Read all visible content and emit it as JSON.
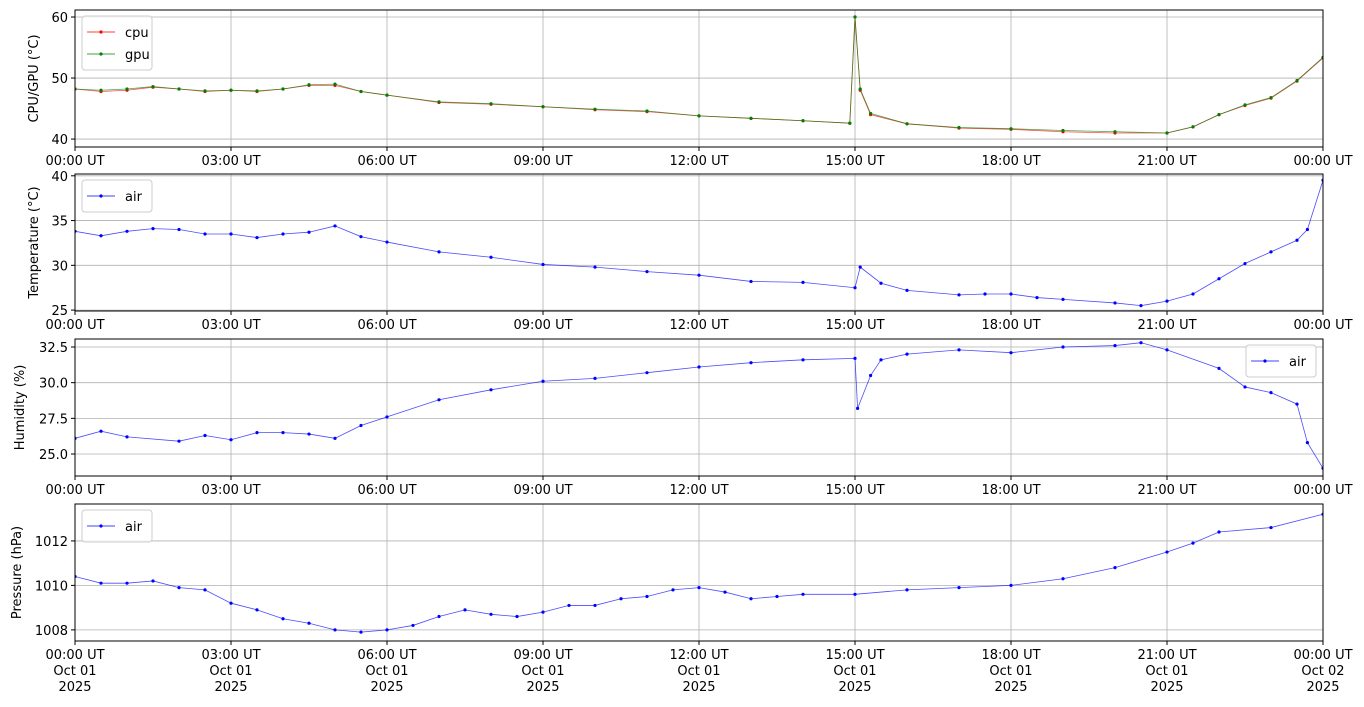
{
  "chart_data": [
    {
      "type": "line",
      "ylabel": "CPU/GPU (°C)",
      "ylim": [
        38.7,
        61.15
      ],
      "yticks": [
        40,
        50,
        60
      ],
      "xlim": [
        "00:00",
        "24:00"
      ],
      "xtick_labels": [
        "00:00 UT",
        "03:00 UT",
        "06:00 UT",
        "09:00 UT",
        "12:00 UT",
        "15:00 UT",
        "18:00 UT",
        "21:00 UT",
        "00:00 UT"
      ],
      "grid": true,
      "legend": "top-left",
      "x": [
        "00:00",
        "00:30",
        "01:00",
        "01:30",
        "02:00",
        "02:30",
        "03:00",
        "03:30",
        "04:00",
        "04:30",
        "05:00",
        "05:30",
        "06:00",
        "07:00",
        "08:00",
        "09:00",
        "10:00",
        "11:00",
        "12:00",
        "13:00",
        "14:00",
        "14:54",
        "15:00",
        "15:06",
        "15:18",
        "16:00",
        "17:00",
        "18:00",
        "19:00",
        "20:00",
        "21:00",
        "21:30",
        "22:00",
        "22:30",
        "23:00",
        "23:30",
        "24:00"
      ],
      "series": [
        {
          "name": "cpu",
          "color": "#ff0000",
          "values": [
            48.2,
            47.8,
            48.0,
            48.5,
            48.2,
            47.8,
            48.0,
            47.8,
            48.2,
            48.8,
            48.8,
            47.8,
            47.2,
            46.0,
            45.7,
            45.3,
            44.8,
            44.5,
            43.8,
            43.4,
            43.0,
            42.6,
            60.0,
            48.0,
            44.0,
            42.5,
            41.8,
            41.6,
            41.2,
            41.0,
            41.0,
            42.0,
            44.0,
            45.5,
            46.7,
            49.5,
            53.3
          ]
        },
        {
          "name": "gpu",
          "color": "#008000",
          "values": [
            48.2,
            48.0,
            48.2,
            48.6,
            48.2,
            47.9,
            48.0,
            47.9,
            48.2,
            48.9,
            49.0,
            47.8,
            47.2,
            46.1,
            45.8,
            45.3,
            44.9,
            44.6,
            43.8,
            43.4,
            43.0,
            42.6,
            60.0,
            48.2,
            44.2,
            42.5,
            41.9,
            41.7,
            41.4,
            41.2,
            41.0,
            42.0,
            44.0,
            45.6,
            46.8,
            49.6,
            53.4
          ]
        }
      ]
    },
    {
      "type": "line",
      "ylabel": "Temperature (°C)",
      "ylim": [
        24.9,
        40.2
      ],
      "yticks": [
        25,
        30,
        35,
        40
      ],
      "xlim": [
        "00:00",
        "24:00"
      ],
      "xtick_labels": [
        "00:00 UT",
        "03:00 UT",
        "06:00 UT",
        "09:00 UT",
        "12:00 UT",
        "15:00 UT",
        "18:00 UT",
        "21:00 UT",
        "00:00 UT"
      ],
      "grid": true,
      "legend": "top-left",
      "x": [
        "00:00",
        "00:30",
        "01:00",
        "01:30",
        "02:00",
        "02:30",
        "03:00",
        "03:30",
        "04:00",
        "04:30",
        "05:00",
        "05:30",
        "06:00",
        "07:00",
        "08:00",
        "09:00",
        "10:00",
        "11:00",
        "12:00",
        "13:00",
        "14:00",
        "15:00",
        "15:06",
        "15:30",
        "16:00",
        "17:00",
        "17:30",
        "18:00",
        "18:30",
        "19:00",
        "20:00",
        "20:30",
        "21:00",
        "21:30",
        "22:00",
        "22:30",
        "23:00",
        "23:30",
        "23:42",
        "24:00"
      ],
      "series": [
        {
          "name": "air",
          "color": "#0000ff",
          "values": [
            33.8,
            33.3,
            33.8,
            34.1,
            34.0,
            33.5,
            33.5,
            33.1,
            33.5,
            33.7,
            34.4,
            33.2,
            32.6,
            31.5,
            30.9,
            30.1,
            29.8,
            29.3,
            28.9,
            28.2,
            28.1,
            27.5,
            29.8,
            28.0,
            27.2,
            26.7,
            26.8,
            26.8,
            26.4,
            26.2,
            25.8,
            25.5,
            26.0,
            26.8,
            28.5,
            30.2,
            31.5,
            32.8,
            34.0,
            39.5
          ]
        }
      ]
    },
    {
      "type": "line",
      "ylabel": "Humidity (%)",
      "ylim": [
        23.46,
        33.06
      ],
      "yticks": [
        25.0,
        27.5,
        30.0,
        32.5
      ],
      "ytick_labels": [
        "25.0",
        "27.5",
        "30.0",
        "32.5"
      ],
      "xlim": [
        "00:00",
        "24:00"
      ],
      "xtick_labels": [
        "00:00 UT",
        "03:00 UT",
        "06:00 UT",
        "09:00 UT",
        "12:00 UT",
        "15:00 UT",
        "18:00 UT",
        "21:00 UT",
        "00:00 UT"
      ],
      "grid": true,
      "legend": "top-right",
      "x": [
        "00:00",
        "00:30",
        "01:00",
        "02:00",
        "02:30",
        "03:00",
        "03:30",
        "04:00",
        "04:30",
        "05:00",
        "05:30",
        "06:00",
        "07:00",
        "08:00",
        "09:00",
        "10:00",
        "11:00",
        "12:00",
        "13:00",
        "14:00",
        "15:00",
        "15:03",
        "15:18",
        "15:30",
        "16:00",
        "17:00",
        "18:00",
        "19:00",
        "20:00",
        "20:30",
        "21:00",
        "22:00",
        "22:30",
        "23:00",
        "23:30",
        "23:42",
        "24:00"
      ],
      "series": [
        {
          "name": "air",
          "color": "#0000ff",
          "values": [
            26.1,
            26.6,
            26.2,
            25.9,
            26.3,
            26.0,
            26.5,
            26.5,
            26.4,
            26.1,
            27.0,
            27.6,
            28.8,
            29.5,
            30.1,
            30.3,
            30.7,
            31.1,
            31.4,
            31.6,
            31.7,
            28.2,
            30.5,
            31.6,
            32.0,
            32.3,
            32.1,
            32.5,
            32.6,
            32.8,
            32.3,
            31.0,
            29.7,
            29.3,
            28.5,
            25.8,
            24.0
          ]
        }
      ]
    },
    {
      "type": "line",
      "ylabel": "Pressure (hPa)",
      "ylim": [
        1007.5,
        1013.66
      ],
      "yticks": [
        1008,
        1010,
        1012
      ],
      "xlim": [
        "00:00",
        "24:00"
      ],
      "xtick_labels": [
        "00:00 UT\nOct 01\n2025",
        "03:00 UT\nOct 01\n2025",
        "06:00 UT\nOct 01\n2025",
        "09:00 UT\nOct 01\n2025",
        "12:00 UT\nOct 01\n2025",
        "15:00 UT\nOct 01\n2025",
        "18:00 UT\nOct 01\n2025",
        "21:00 UT\nOct 01\n2025",
        "00:00 UT\nOct 02\n2025"
      ],
      "grid": true,
      "legend": "top-left",
      "x": [
        "00:00",
        "00:30",
        "01:00",
        "01:30",
        "02:00",
        "02:30",
        "03:00",
        "03:30",
        "04:00",
        "04:30",
        "05:00",
        "05:30",
        "06:00",
        "06:30",
        "07:00",
        "07:30",
        "08:00",
        "08:30",
        "09:00",
        "09:30",
        "10:00",
        "10:30",
        "11:00",
        "11:30",
        "12:00",
        "12:30",
        "13:00",
        "13:30",
        "14:00",
        "15:00",
        "16:00",
        "17:00",
        "18:00",
        "19:00",
        "20:00",
        "21:00",
        "21:30",
        "22:00",
        "23:00",
        "24:00"
      ],
      "series": [
        {
          "name": "air",
          "color": "#0000ff",
          "values": [
            1010.4,
            1010.1,
            1010.1,
            1010.2,
            1009.9,
            1009.8,
            1009.2,
            1008.9,
            1008.5,
            1008.3,
            1008.0,
            1007.9,
            1008.0,
            1008.2,
            1008.6,
            1008.9,
            1008.7,
            1008.6,
            1008.8,
            1009.1,
            1009.1,
            1009.4,
            1009.5,
            1009.8,
            1009.9,
            1009.7,
            1009.4,
            1009.5,
            1009.6,
            1009.6,
            1009.8,
            1009.9,
            1010.0,
            1010.3,
            1010.8,
            1011.5,
            1011.9,
            1012.4,
            1012.6,
            1013.2
          ]
        }
      ]
    }
  ]
}
